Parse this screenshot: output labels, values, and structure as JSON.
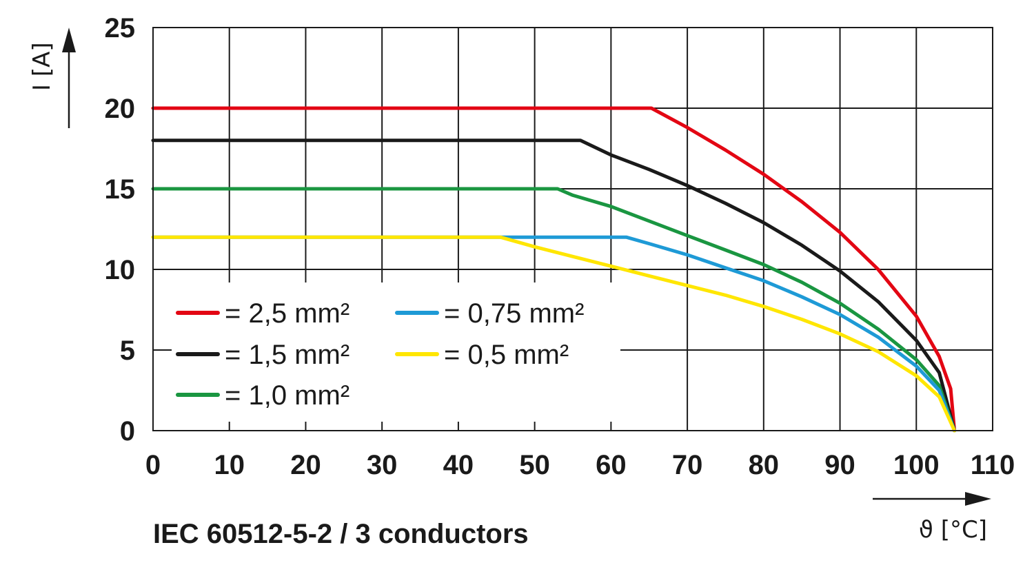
{
  "chart_data": {
    "type": "line",
    "title": "",
    "caption": "IEC 60512-5-2 / 3 conductors",
    "xlabel": "ϑ [°C]",
    "ylabel": "I [A]",
    "xlim": [
      0,
      110
    ],
    "ylim": [
      0,
      25
    ],
    "xticks": [
      0,
      10,
      20,
      30,
      40,
      50,
      60,
      70,
      80,
      90,
      100,
      110
    ],
    "yticks": [
      0,
      5,
      10,
      15,
      20,
      25
    ],
    "grid": true,
    "legend_position": "lower-left",
    "series": [
      {
        "name": "= 2,5 mm²",
        "color": "#e30613",
        "points": [
          [
            0,
            20
          ],
          [
            65.3,
            20
          ],
          [
            70,
            18.8
          ],
          [
            75,
            17.4
          ],
          [
            80,
            15.9
          ],
          [
            85,
            14.2
          ],
          [
            90,
            12.3
          ],
          [
            95,
            10.0
          ],
          [
            100,
            7.1
          ],
          [
            103,
            4.6
          ],
          [
            104.5,
            2.6
          ],
          [
            105,
            0
          ]
        ]
      },
      {
        "name": "= 1,5 mm²",
        "color": "#1a1a1a",
        "points": [
          [
            0,
            18
          ],
          [
            56,
            18
          ],
          [
            60,
            17.1
          ],
          [
            65,
            16.2
          ],
          [
            70,
            15.2
          ],
          [
            75,
            14.1
          ],
          [
            80,
            12.9
          ],
          [
            85,
            11.5
          ],
          [
            90,
            9.9
          ],
          [
            95,
            8.0
          ],
          [
            100,
            5.6
          ],
          [
            103,
            3.6
          ],
          [
            105,
            0
          ]
        ]
      },
      {
        "name": "= 1,0 mm²",
        "color": "#1a9641",
        "points": [
          [
            0,
            15
          ],
          [
            53,
            15
          ],
          [
            55,
            14.6
          ],
          [
            60,
            13.9
          ],
          [
            65,
            13.0
          ],
          [
            70,
            12.1
          ],
          [
            75,
            11.2
          ],
          [
            80,
            10.3
          ],
          [
            85,
            9.2
          ],
          [
            90,
            7.9
          ],
          [
            95,
            6.3
          ],
          [
            100,
            4.4
          ],
          [
            103,
            2.8
          ],
          [
            105,
            0
          ]
        ]
      },
      {
        "name": "= 0,75 mm²",
        "color": "#1e9ad6",
        "points": [
          [
            0,
            12
          ],
          [
            62,
            12
          ],
          [
            65,
            11.6
          ],
          [
            70,
            10.9
          ],
          [
            75,
            10.1
          ],
          [
            80,
            9.3
          ],
          [
            85,
            8.3
          ],
          [
            90,
            7.2
          ],
          [
            95,
            5.8
          ],
          [
            100,
            4.0
          ],
          [
            103,
            2.5
          ],
          [
            105,
            0
          ]
        ]
      },
      {
        "name": "= 0,5 mm²",
        "color": "#ffe600",
        "points": [
          [
            0,
            12
          ],
          [
            45.5,
            12
          ],
          [
            50,
            11.4
          ],
          [
            55,
            10.8
          ],
          [
            60,
            10.2
          ],
          [
            65,
            9.6
          ],
          [
            70,
            9.0
          ],
          [
            75,
            8.4
          ],
          [
            80,
            7.7
          ],
          [
            85,
            6.9
          ],
          [
            90,
            6.0
          ],
          [
            95,
            4.9
          ],
          [
            100,
            3.4
          ],
          [
            103,
            2.1
          ],
          [
            105,
            0
          ]
        ]
      }
    ]
  }
}
